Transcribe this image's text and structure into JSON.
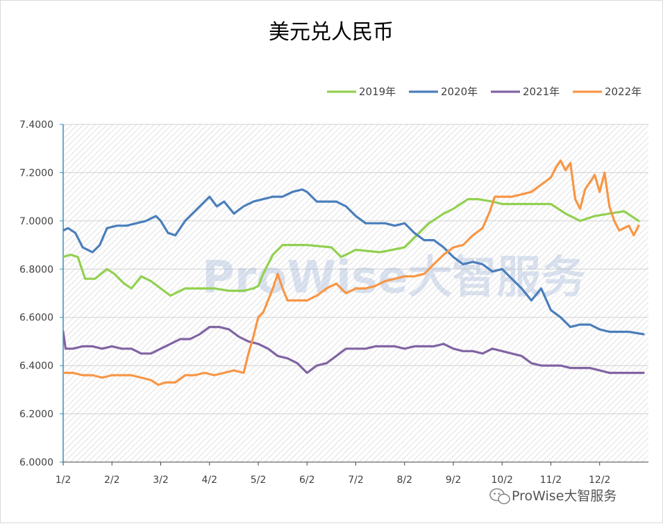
{
  "chart_data": {
    "type": "line",
    "title": "美元兑人民币",
    "xlabel": "",
    "ylabel": "",
    "ylim": [
      6.0,
      7.4
    ],
    "y_ticks": [
      "6.0000",
      "6.2000",
      "6.4000",
      "6.6000",
      "6.8000",
      "7.0000",
      "7.2000",
      "7.4000"
    ],
    "categories": [
      "1/2",
      "2/2",
      "3/2",
      "4/2",
      "5/2",
      "6/2",
      "7/2",
      "8/2",
      "9/2",
      "10/2",
      "11/2",
      "12/2"
    ],
    "grid": true,
    "legend_position": "top-right",
    "series": [
      {
        "name": "2019年",
        "color": "#92d050",
        "x": [
          1.0,
          1.15,
          1.3,
          1.45,
          1.65,
          1.9,
          2.05,
          2.25,
          2.4,
          2.6,
          2.8,
          3.0,
          3.2,
          3.5,
          3.8,
          4.1,
          4.4,
          4.7,
          4.9,
          5.0,
          5.1,
          5.3,
          5.5,
          6.0,
          6.5,
          6.7,
          7.0,
          7.5,
          8.0,
          8.2,
          8.5,
          8.8,
          9.0,
          9.3,
          9.5,
          9.8,
          10.0,
          10.3,
          10.6,
          11.0,
          11.3,
          11.6,
          11.9,
          12.2,
          12.5,
          12.8
        ],
        "values": [
          6.85,
          6.86,
          6.85,
          6.76,
          6.76,
          6.8,
          6.78,
          6.74,
          6.72,
          6.77,
          6.75,
          6.72,
          6.69,
          6.72,
          6.72,
          6.72,
          6.71,
          6.71,
          6.72,
          6.73,
          6.78,
          6.86,
          6.9,
          6.9,
          6.89,
          6.85,
          6.88,
          6.87,
          6.89,
          6.93,
          6.99,
          7.03,
          7.05,
          7.09,
          7.09,
          7.08,
          7.07,
          7.07,
          7.07,
          7.07,
          7.03,
          7.0,
          7.02,
          7.03,
          7.04,
          7.0
        ]
      },
      {
        "name": "2020年",
        "color": "#4a7ebb",
        "x": [
          1.0,
          1.1,
          1.25,
          1.4,
          1.6,
          1.75,
          1.9,
          2.1,
          2.3,
          2.5,
          2.7,
          2.9,
          3.0,
          3.15,
          3.3,
          3.5,
          3.7,
          3.9,
          4.0,
          4.15,
          4.3,
          4.5,
          4.7,
          4.9,
          5.1,
          5.3,
          5.5,
          5.7,
          5.9,
          6.0,
          6.2,
          6.4,
          6.6,
          6.8,
          7.0,
          7.2,
          7.4,
          7.6,
          7.8,
          8.0,
          8.2,
          8.4,
          8.6,
          8.8,
          9.0,
          9.2,
          9.4,
          9.6,
          9.8,
          10.0,
          10.2,
          10.4,
          10.6,
          10.8,
          11.0,
          11.2,
          11.4,
          11.6,
          11.8,
          12.0,
          12.2,
          12.4,
          12.6,
          12.9
        ],
        "values": [
          6.96,
          6.97,
          6.95,
          6.89,
          6.87,
          6.9,
          6.97,
          6.98,
          6.98,
          6.99,
          7.0,
          7.02,
          7.0,
          6.95,
          6.94,
          7.0,
          7.04,
          7.08,
          7.1,
          7.06,
          7.08,
          7.03,
          7.06,
          7.08,
          7.09,
          7.1,
          7.1,
          7.12,
          7.13,
          7.12,
          7.08,
          7.08,
          7.08,
          7.06,
          7.02,
          6.99,
          6.99,
          6.99,
          6.98,
          6.99,
          6.95,
          6.92,
          6.92,
          6.89,
          6.85,
          6.82,
          6.83,
          6.82,
          6.79,
          6.8,
          6.76,
          6.72,
          6.67,
          6.72,
          6.63,
          6.6,
          6.56,
          6.57,
          6.57,
          6.55,
          6.54,
          6.54,
          6.54,
          6.53
        ]
      },
      {
        "name": "2021年",
        "color": "#8064a2",
        "x": [
          1.0,
          1.05,
          1.2,
          1.4,
          1.6,
          1.8,
          2.0,
          2.2,
          2.4,
          2.6,
          2.8,
          3.0,
          3.2,
          3.4,
          3.6,
          3.8,
          4.0,
          4.2,
          4.4,
          4.6,
          4.8,
          5.0,
          5.2,
          5.4,
          5.6,
          5.8,
          6.0,
          6.2,
          6.4,
          6.6,
          6.8,
          7.0,
          7.2,
          7.4,
          7.6,
          7.8,
          8.0,
          8.2,
          8.4,
          8.6,
          8.8,
          9.0,
          9.2,
          9.4,
          9.6,
          9.8,
          10.0,
          10.2,
          10.4,
          10.6,
          10.8,
          11.0,
          11.2,
          11.4,
          11.6,
          11.8,
          12.0,
          12.2,
          12.4,
          12.6,
          12.9
        ],
        "values": [
          6.54,
          6.47,
          6.47,
          6.48,
          6.48,
          6.47,
          6.48,
          6.47,
          6.47,
          6.45,
          6.45,
          6.47,
          6.49,
          6.51,
          6.51,
          6.53,
          6.56,
          6.56,
          6.55,
          6.52,
          6.5,
          6.49,
          6.47,
          6.44,
          6.43,
          6.41,
          6.37,
          6.4,
          6.41,
          6.44,
          6.47,
          6.47,
          6.47,
          6.48,
          6.48,
          6.48,
          6.47,
          6.48,
          6.48,
          6.48,
          6.49,
          6.47,
          6.46,
          6.46,
          6.45,
          6.47,
          6.46,
          6.45,
          6.44,
          6.41,
          6.4,
          6.4,
          6.4,
          6.39,
          6.39,
          6.39,
          6.38,
          6.37,
          6.37,
          6.37,
          6.37
        ]
      },
      {
        "name": "2022年",
        "color": "#f79646",
        "x": [
          1.0,
          1.2,
          1.4,
          1.6,
          1.8,
          2.0,
          2.2,
          2.4,
          2.6,
          2.8,
          2.95,
          3.1,
          3.3,
          3.5,
          3.7,
          3.9,
          4.1,
          4.3,
          4.5,
          4.7,
          4.8,
          4.9,
          5.0,
          5.1,
          5.3,
          5.4,
          5.5,
          5.6,
          5.8,
          6.0,
          6.2,
          6.4,
          6.6,
          6.8,
          7.0,
          7.2,
          7.4,
          7.6,
          7.8,
          8.0,
          8.2,
          8.4,
          8.6,
          8.8,
          9.0,
          9.2,
          9.4,
          9.6,
          9.75,
          9.85,
          10.0,
          10.2,
          10.4,
          10.6,
          10.8,
          11.0,
          11.1,
          11.2,
          11.3,
          11.4,
          11.5,
          11.6,
          11.7,
          11.8,
          11.9,
          12.0,
          12.1,
          12.2,
          12.3,
          12.4,
          12.5,
          12.6,
          12.7,
          12.8
        ],
        "values": [
          6.37,
          6.37,
          6.36,
          6.36,
          6.35,
          6.36,
          6.36,
          6.36,
          6.35,
          6.34,
          6.32,
          6.33,
          6.33,
          6.36,
          6.36,
          6.37,
          6.36,
          6.37,
          6.38,
          6.37,
          6.45,
          6.52,
          6.6,
          6.62,
          6.72,
          6.78,
          6.72,
          6.67,
          6.67,
          6.67,
          6.69,
          6.72,
          6.74,
          6.7,
          6.72,
          6.72,
          6.73,
          6.75,
          6.76,
          6.77,
          6.77,
          6.78,
          6.82,
          6.86,
          6.89,
          6.9,
          6.94,
          6.97,
          7.04,
          7.1,
          7.1,
          7.1,
          7.11,
          7.12,
          7.15,
          7.18,
          7.22,
          7.25,
          7.21,
          7.24,
          7.09,
          7.05,
          7.13,
          7.16,
          7.19,
          7.12,
          7.2,
          7.06,
          7.0,
          6.96,
          6.97,
          6.98,
          6.94,
          6.98
        ]
      }
    ]
  },
  "watermark": {
    "text": "ProWise大智服务"
  },
  "brand": {
    "label": "ProWise大智服务",
    "icon": "wechat-icon"
  }
}
